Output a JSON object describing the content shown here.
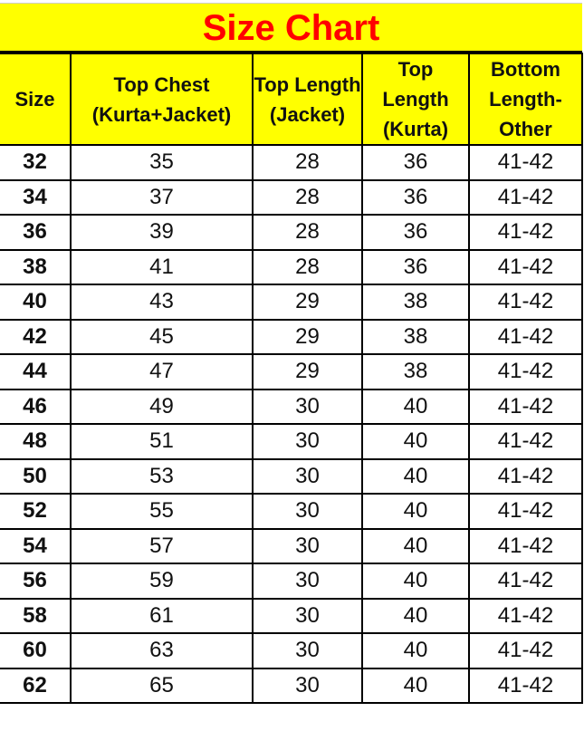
{
  "title": "Size Chart",
  "colors": {
    "header_bg": "#ffff00",
    "title_text": "#ff0000"
  },
  "headers": [
    "Size",
    "Top Chest (Kurta+Jacket)",
    "Top Length (Jacket)",
    "Top Length (Kurta)",
    "Bottom Length-Other"
  ],
  "rows": [
    [
      "32",
      "35",
      "28",
      "36",
      "41-42"
    ],
    [
      "34",
      "37",
      "28",
      "36",
      "41-42"
    ],
    [
      "36",
      "39",
      "28",
      "36",
      "41-42"
    ],
    [
      "38",
      "41",
      "28",
      "36",
      "41-42"
    ],
    [
      "40",
      "43",
      "29",
      "38",
      "41-42"
    ],
    [
      "42",
      "45",
      "29",
      "38",
      "41-42"
    ],
    [
      "44",
      "47",
      "29",
      "38",
      "41-42"
    ],
    [
      "46",
      "49",
      "30",
      "40",
      "41-42"
    ],
    [
      "48",
      "51",
      "30",
      "40",
      "41-42"
    ],
    [
      "50",
      "53",
      "30",
      "40",
      "41-42"
    ],
    [
      "52",
      "55",
      "30",
      "40",
      "41-42"
    ],
    [
      "54",
      "57",
      "30",
      "40",
      "41-42"
    ],
    [
      "56",
      "59",
      "30",
      "40",
      "41-42"
    ],
    [
      "58",
      "61",
      "30",
      "40",
      "41-42"
    ],
    [
      "60",
      "63",
      "30",
      "40",
      "41-42"
    ],
    [
      "62",
      "65",
      "30",
      "40",
      "41-42"
    ]
  ]
}
